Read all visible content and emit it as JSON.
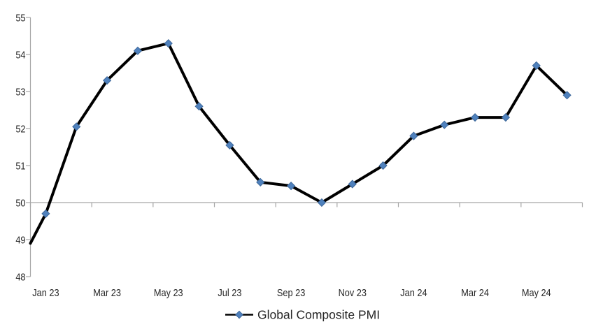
{
  "chart_data": {
    "type": "line",
    "title": "",
    "xlabel": "",
    "ylabel": "",
    "categories": [
      "Jan 23",
      "Feb 23",
      "Mar 23",
      "Apr 23",
      "May 23",
      "Jun 23",
      "Jul 23",
      "Aug 23",
      "Sep 23",
      "Oct 23",
      "Nov 23",
      "Dec 23",
      "Jan 24",
      "Feb 24",
      "Mar 24",
      "Apr 24",
      "May 24",
      "Jun 24"
    ],
    "series": [
      {
        "name": "Global Composite PMI",
        "values": [
          49.7,
          52.05,
          53.3,
          54.1,
          54.3,
          52.6,
          51.55,
          50.55,
          50.45,
          50.0,
          50.5,
          51.0,
          51.8,
          52.1,
          52.3,
          52.3,
          53.7,
          52.9
        ],
        "axis_entry_value": 48.9
      }
    ],
    "x_tick_labels": [
      "Jan 23",
      "Mar 23",
      "May 23",
      "Jul 23",
      "Sep 23",
      "Nov 23",
      "Jan 24",
      "Mar 24",
      "May 24"
    ],
    "x_label_interval": 2,
    "y_ticks": [
      48,
      49,
      50,
      51,
      52,
      53,
      54,
      55
    ],
    "ylim": [
      48,
      55
    ],
    "category_axis_crosses_at": 50,
    "grid": "off",
    "legend": {
      "position": "bottom",
      "label": "Global Composite PMI"
    },
    "colors": {
      "line": "#000000",
      "marker_fill": "#4F81BD",
      "marker_edge": "#3E689A",
      "axis": "#A6A6A6",
      "text": "#262626"
    }
  }
}
